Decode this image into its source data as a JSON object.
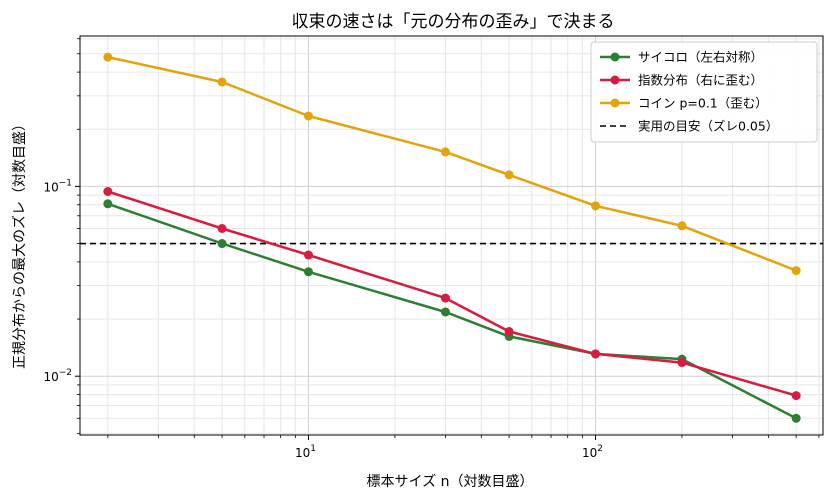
{
  "chart_data": {
    "type": "line",
    "title": "収束の速さは「元の分布の歪み」で決まる",
    "xlabel": "標本サイズ n（対数目盛）",
    "ylabel": "正規分布からの最大のズレ（対数目盛）",
    "xscale": "log",
    "yscale": "log",
    "xlim": [
      1.6,
      620
    ],
    "ylim": [
      0.0049,
      0.62
    ],
    "grid": true,
    "legend_position": "top-right",
    "x_ticks": [
      {
        "value": 10,
        "base": "10",
        "exp": "1"
      },
      {
        "value": 100,
        "base": "10",
        "exp": "2"
      }
    ],
    "y_ticks": [
      {
        "value": 0.01,
        "base": "10",
        "exp": "−2"
      },
      {
        "value": 0.1,
        "base": "10",
        "exp": "−1"
      }
    ],
    "x": [
      2,
      5,
      10,
      30,
      50,
      100,
      200,
      500
    ],
    "series": [
      {
        "name": "サイコロ（左右対称）",
        "color": "#2e7d32",
        "values": [
          0.081,
          0.05,
          0.0355,
          0.0218,
          0.0162,
          0.0131,
          0.0123,
          0.006
        ]
      },
      {
        "name": "指数分布（右に歪む）",
        "color": "#d81b40",
        "values": [
          0.094,
          0.06,
          0.0435,
          0.0258,
          0.0172,
          0.0131,
          0.0118,
          0.0079
        ]
      },
      {
        "name": "コイン p=0.1（歪む）",
        "color": "#e3a30a",
        "values": [
          0.48,
          0.355,
          0.235,
          0.152,
          0.115,
          0.079,
          0.062,
          0.036
        ]
      }
    ],
    "reference_line": {
      "label": "実用の目安（ズレ0.05）",
      "value": 0.05,
      "color": "#000000",
      "style": "dashed"
    }
  }
}
